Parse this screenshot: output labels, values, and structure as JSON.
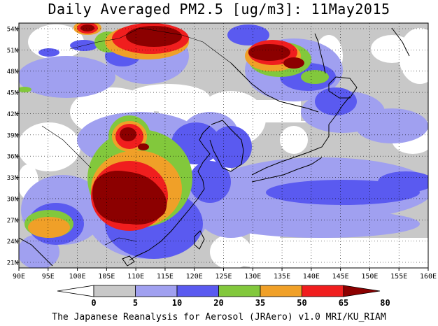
{
  "title": "Daily Averaged PM2.5 [ug/m3]: 11May2015",
  "footer": "The Japanese Reanalysis for Aerosol (JRAero) v1.0 MRI/KU_RIAM",
  "map": {
    "lon_ticks": [
      "90E",
      "95E",
      "100E",
      "105E",
      "110E",
      "115E",
      "120E",
      "125E",
      "130E",
      "135E",
      "140E",
      "145E",
      "150E",
      "155E",
      "160E"
    ],
    "lat_ticks": [
      "54N",
      "51N",
      "48N",
      "45N",
      "42N",
      "39N",
      "36N",
      "33N",
      "30N",
      "27N",
      "24N",
      "21N"
    ],
    "colorbar": {
      "levels": [
        "0",
        "5",
        "10",
        "20",
        "35",
        "50",
        "65",
        "80"
      ],
      "colors": [
        "#ffffff",
        "#c8c8c8",
        "#a0a0f0",
        "#5a5af0",
        "#82c83c",
        "#f0a028",
        "#f01e1e",
        "#8c0000"
      ]
    }
  }
}
